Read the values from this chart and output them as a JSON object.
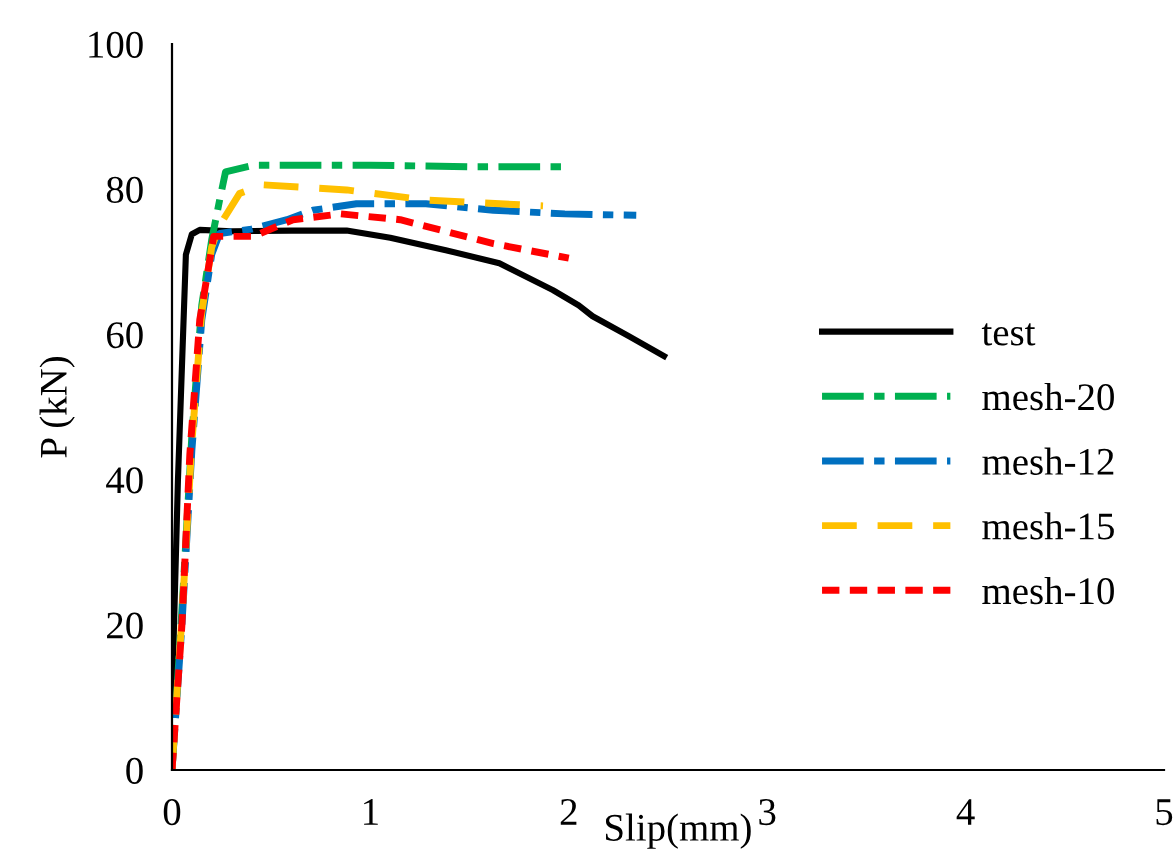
{
  "chart_data": {
    "type": "line",
    "xlabel": "Slip(mm)",
    "ylabel": "P (kN)",
    "xlim": [
      0,
      5
    ],
    "xticks": [
      0,
      1,
      2,
      3,
      4,
      5
    ],
    "ylim": [
      0,
      100
    ],
    "yticks": [
      0,
      20,
      40,
      60,
      80,
      100
    ],
    "grid": false,
    "legend": "right",
    "series": [
      {
        "name": "test",
        "color": "#000000",
        "line_style": "solid",
        "x": [
          0,
          0.03,
          0.07,
          0.1,
          0.14,
          0.3,
          0.6,
          0.88,
          1.1,
          1.38,
          1.65,
          1.92,
          2.05,
          2.12,
          2.3,
          2.48
        ],
        "values": [
          9.6,
          40,
          71,
          73.8,
          74.4,
          74.2,
          74.3,
          74.3,
          73.3,
          71.6,
          69.8,
          66.1,
          64,
          62.5,
          59.8,
          57
        ]
      },
      {
        "name": "mesh-20",
        "color": "#00b050",
        "line_style": "dashdot",
        "x": [
          0,
          0.05,
          0.1,
          0.15,
          0.2,
          0.24,
          0.27,
          0.41,
          1.0,
          1.5,
          2.0
        ],
        "values": [
          0,
          22,
          46,
          64,
          73,
          78.5,
          82.4,
          83.3,
          83.3,
          83.1,
          83.1
        ]
      },
      {
        "name": "mesh-12",
        "color": "#0070c0",
        "line_style": "dashdot",
        "x": [
          0,
          0.05,
          0.1,
          0.15,
          0.2,
          0.24,
          0.4,
          0.58,
          0.71,
          0.93,
          1.28,
          1.62,
          1.98,
          2.34
        ],
        "values": [
          0,
          20,
          44,
          62,
          71,
          73.9,
          74.5,
          75.8,
          77.1,
          78.0,
          78.0,
          77.1,
          76.6,
          76.4
        ]
      },
      {
        "name": "mesh-15",
        "color": "#ffc000",
        "line_style": "dashed",
        "x": [
          0,
          0.05,
          0.1,
          0.15,
          0.2,
          0.24,
          0.34,
          0.46,
          0.88,
          1.28,
          1.87
        ],
        "values": [
          0,
          21,
          45,
          63,
          72,
          75,
          79.4,
          80.6,
          79.9,
          78.5,
          77.7
        ]
      },
      {
        "name": "mesh-10",
        "color": "#ff0000",
        "line_style": "dotted",
        "x": [
          0,
          0.05,
          0.09,
          0.14,
          0.21,
          0.41,
          0.61,
          0.85,
          1.15,
          1.62,
          2.0
        ],
        "values": [
          0,
          20,
          43.5,
          62,
          73.5,
          73.5,
          75.8,
          76.6,
          75.8,
          72.5,
          70.5
        ]
      }
    ]
  }
}
